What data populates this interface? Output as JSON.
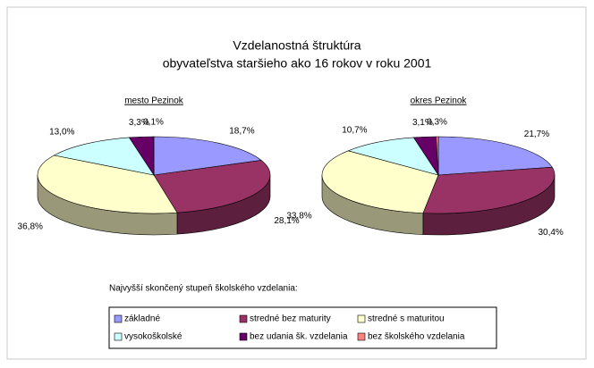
{
  "title_lines": [
    "Vzdelanostná štruktúra",
    "obyvateľstva staršieho ako 16 rokov v roku 2001"
  ],
  "legend_title": "Najvyšší skončený stupeň školského vzdelania:",
  "chart_data": [
    {
      "type": "pie",
      "title": "mesto Pezinok",
      "categories": [
        "základné",
        "stredné bez maturity",
        "stredné s maturitou",
        "vysokoškolské",
        "bez udania šk. vzdelania",
        "bez školského vzdelania"
      ],
      "colors": [
        "#9999ff",
        "#993366",
        "#ffffcc",
        "#ccffff",
        "#660066",
        "#ff8080"
      ],
      "values": [
        18.7,
        28.1,
        36.8,
        13.0,
        3.3,
        0.1
      ],
      "value_labels": [
        "18,7%",
        "28,1%",
        "36,8%",
        "13,0%",
        "3,3%",
        "0,1%"
      ]
    },
    {
      "type": "pie",
      "title": "okres Pezinok",
      "categories": [
        "základné",
        "stredné bez maturity",
        "stredné s maturitou",
        "vysokoškolské",
        "bez udania šk. vzdelania",
        "bez školského vzdelania"
      ],
      "colors": [
        "#9999ff",
        "#993366",
        "#ffffcc",
        "#ccffff",
        "#660066",
        "#ff8080"
      ],
      "values": [
        21.7,
        30.4,
        33.8,
        10.7,
        3.1,
        0.3
      ],
      "value_labels": [
        "21,7%",
        "30,4%",
        "33,8%",
        "10,7%",
        "3,1%",
        "0,3%"
      ]
    }
  ]
}
